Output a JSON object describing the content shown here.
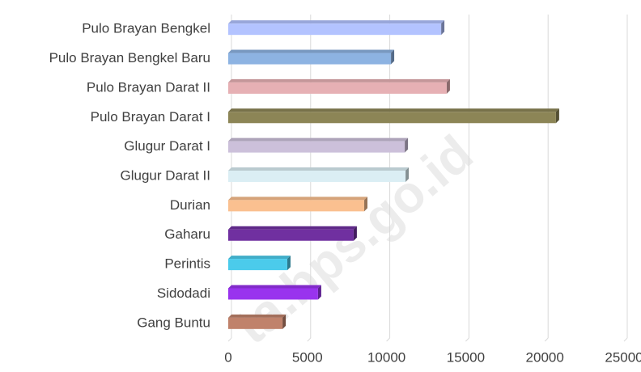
{
  "chart_data": {
    "type": "bar",
    "orientation": "horizontal",
    "categories": [
      "Pulo Brayan Bengkel",
      "Pulo Brayan Bengkel Baru",
      "Pulo Brayan Darat II",
      "Pulo Brayan Darat I",
      "Glugur Darat I",
      "Glugur Darat II",
      "Durian",
      "Gaharu",
      "Perintis",
      "Sidodadi",
      "Gang Buntu"
    ],
    "values": [
      13450,
      10280,
      13800,
      20700,
      11150,
      11200,
      8590,
      7920,
      3730,
      5670,
      3430
    ],
    "colors": [
      "#b3c3ff",
      "#8db3e2",
      "#e6b0b4",
      "#8c8556",
      "#ccc0da",
      "#dbeef4",
      "#fac090",
      "#7030a0",
      "#4bcbeb",
      "#9933ee",
      "#c0826b"
    ],
    "xlim": [
      0,
      25000
    ],
    "xticks": [
      0,
      5000,
      10000,
      15000,
      20000,
      25000
    ],
    "grid": true,
    "watermark": "ta.bps.go.id"
  }
}
